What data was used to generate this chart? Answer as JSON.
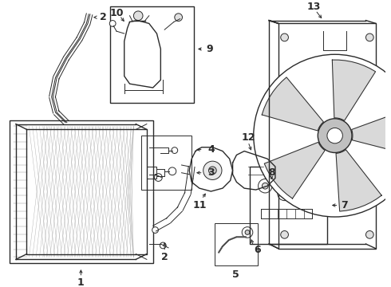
{
  "bg_color": "#ffffff",
  "line_color": "#2a2a2a",
  "fig_w": 4.9,
  "fig_h": 3.6,
  "dpi": 100
}
